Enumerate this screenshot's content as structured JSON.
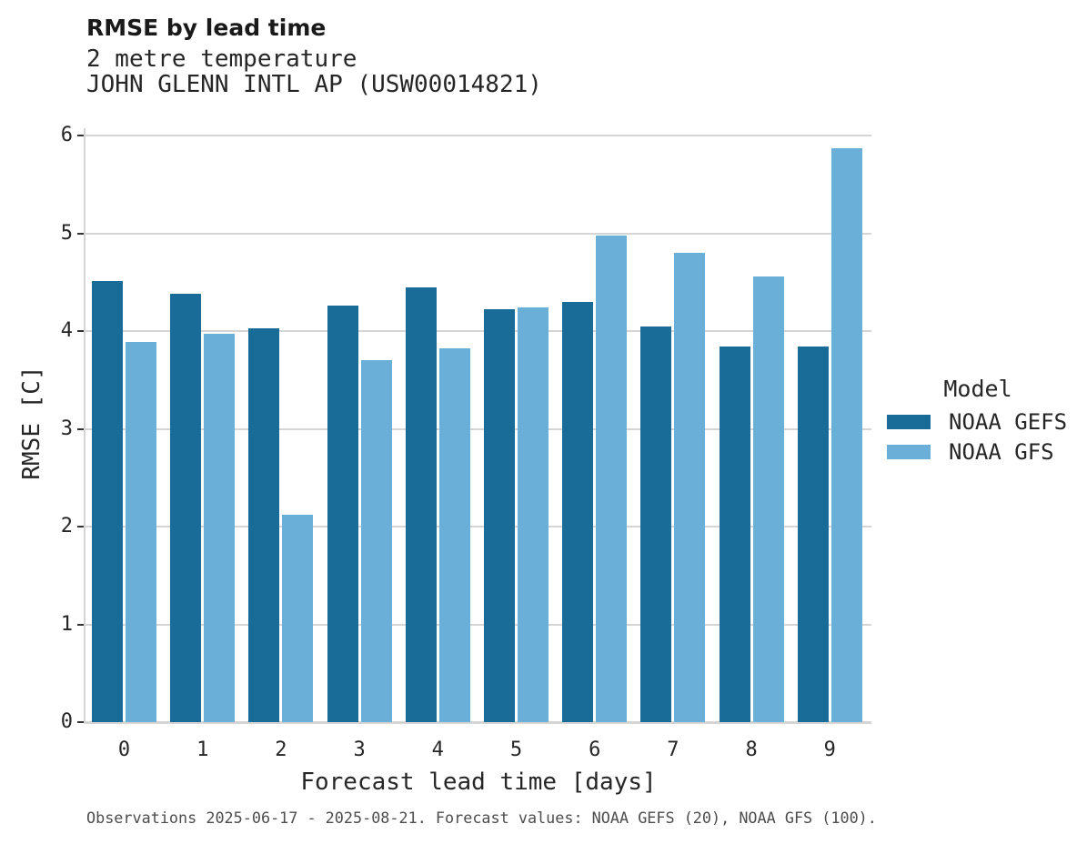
{
  "header": {
    "title": "RMSE by lead time",
    "subtitle_line1": "2 metre temperature",
    "subtitle_line2": "JOHN GLENN INTL AP (USW00014821)"
  },
  "axes": {
    "x_title": "Forecast lead time [days]",
    "y_title": "RMSE [C]"
  },
  "legend": {
    "title": "Model",
    "entries": [
      {
        "label": "NOAA GEFS",
        "color": "#1a6c98"
      },
      {
        "label": "NOAA GFS",
        "color": "#69afd7"
      }
    ]
  },
  "footer": {
    "caption": "Observations 2025-06-17 - 2025-08-21. Forecast values: NOAA GEFS (20), NOAA GFS (100)."
  },
  "colors": {
    "gefs": "#1a6c98",
    "gfs": "#69afd7",
    "gridline": "#d5d5d5",
    "tick_mark": "#333333",
    "text_dark": "#262626",
    "caption_gray": "#4d4d4d"
  },
  "chart_data": {
    "type": "bar",
    "title": "RMSE by lead time",
    "subtitle": "2 metre temperature",
    "station": "JOHN GLENN INTL AP (USW00014821)",
    "xlabel": "Forecast lead time [days]",
    "ylabel": "RMSE [C]",
    "categories": [
      "0",
      "1",
      "2",
      "3",
      "4",
      "5",
      "6",
      "7",
      "8",
      "9"
    ],
    "series": [
      {
        "name": "NOAA GEFS",
        "color": "#1a6c98",
        "values": [
          4.51,
          4.38,
          4.03,
          4.26,
          4.45,
          4.22,
          4.3,
          4.05,
          3.84,
          3.84
        ]
      },
      {
        "name": "NOAA GFS",
        "color": "#69afd7",
        "values": [
          3.89,
          3.97,
          2.12,
          3.7,
          3.82,
          4.24,
          4.98,
          4.8,
          4.56,
          5.87
        ]
      }
    ],
    "ylim": [
      0,
      6
    ],
    "yticks": [
      0,
      1,
      2,
      3,
      4,
      5,
      6
    ],
    "grid": true,
    "legend_title": "Model",
    "legend_position": "right",
    "caption": "Observations 2025-06-17 - 2025-08-21. Forecast values: NOAA GEFS (20), NOAA GFS (100)."
  }
}
